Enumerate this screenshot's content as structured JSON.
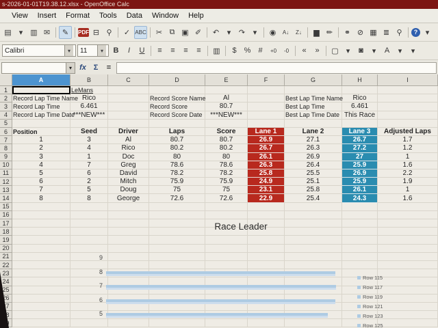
{
  "window": {
    "title": "s-2026-01-01T19.38.12.xlsx - OpenOffice Calc"
  },
  "menu_bar": {
    "items": [
      "View",
      "Insert",
      "Format",
      "Tools",
      "Data",
      "Window",
      "Help"
    ]
  },
  "standard_toolbar": {
    "find_label": "Find",
    "icons": [
      {
        "name": "new-document-icon",
        "glyph": "▤"
      },
      {
        "name": "new-dropdown-icon",
        "glyph": "▾"
      },
      {
        "name": "save-icon",
        "glyph": "▥"
      },
      {
        "name": "email-document-icon",
        "glyph": "✉"
      },
      {
        "name": "separator-line",
        "glyph": ""
      },
      {
        "name": "edit-mode-icon",
        "glyph": "✎",
        "hl": true
      },
      {
        "name": "separator-line",
        "glyph": ""
      },
      {
        "name": "pdf-export-icon",
        "glyph": "PDF",
        "red": true
      },
      {
        "name": "print-icon",
        "glyph": "⊟"
      },
      {
        "name": "page-preview-icon",
        "glyph": "⚲"
      },
      {
        "name": "separator-line",
        "glyph": ""
      },
      {
        "name": "spellcheck-icon",
        "glyph": "✓"
      },
      {
        "name": "autospellcheck-icon",
        "glyph": "ABC",
        "hl": true
      },
      {
        "name": "separator-line",
        "glyph": ""
      },
      {
        "name": "cut-icon",
        "glyph": "✂"
      },
      {
        "name": "copy-icon",
        "glyph": "⧉"
      },
      {
        "name": "paste-icon",
        "glyph": "▣"
      },
      {
        "name": "format-paintbrush-icon",
        "glyph": "✐"
      },
      {
        "name": "separator-line",
        "glyph": ""
      },
      {
        "name": "undo-icon",
        "glyph": "↶"
      },
      {
        "name": "undo-dropdown-icon",
        "glyph": "▾"
      },
      {
        "name": "redo-icon",
        "glyph": "↷"
      },
      {
        "name": "redo-dropdown-icon",
        "glyph": "▾"
      },
      {
        "name": "separator-line",
        "glyph": ""
      },
      {
        "name": "navigator-icon",
        "glyph": "◉"
      },
      {
        "name": "sort-ascending-icon",
        "glyph": "A↓"
      },
      {
        "name": "sort-descending-icon",
        "glyph": "Z↓"
      },
      {
        "name": "separator-line",
        "glyph": ""
      },
      {
        "name": "insert-chart-icon",
        "glyph": "▆"
      },
      {
        "name": "show-draw-functions-icon",
        "glyph": "✏"
      },
      {
        "name": "separator-line",
        "glyph": ""
      },
      {
        "name": "find-replace-icon",
        "glyph": "⚭"
      },
      {
        "name": "hyperlink-icon",
        "glyph": "⊘"
      },
      {
        "name": "gallery-icon",
        "glyph": "▦"
      },
      {
        "name": "data-sources-icon",
        "glyph": "≣"
      },
      {
        "name": "zoom-icon",
        "glyph": "⚲"
      },
      {
        "name": "separator-line",
        "glyph": ""
      },
      {
        "name": "help-icon",
        "glyph": "?",
        "round": true
      },
      {
        "name": "toolbar-options-dropdown-icon",
        "glyph": "▾"
      }
    ]
  },
  "formatting_toolbar": {
    "font_name": "Calibri",
    "font_size": "11",
    "icons": [
      {
        "name": "bold-button",
        "glyph": "B",
        "cls": "fb"
      },
      {
        "name": "italic-button",
        "glyph": "I",
        "cls": "fi"
      },
      {
        "name": "underline-button",
        "glyph": "U",
        "cls": "fu"
      },
      {
        "name": "separator-line",
        "glyph": ""
      },
      {
        "name": "align-left-icon",
        "glyph": "≡"
      },
      {
        "name": "align-center-icon",
        "glyph": "≡"
      },
      {
        "name": "align-right-icon",
        "glyph": "≡"
      },
      {
        "name": "align-justify-icon",
        "glyph": "≡"
      },
      {
        "name": "separator-line",
        "glyph": ""
      },
      {
        "name": "merge-cells-icon",
        "glyph": "▥"
      },
      {
        "name": "separator-line",
        "glyph": ""
      },
      {
        "name": "currency-format-icon",
        "glyph": "$"
      },
      {
        "name": "percent-format-icon",
        "glyph": "%"
      },
      {
        "name": "standard-format-icon",
        "glyph": "#"
      },
      {
        "name": "add-decimal-icon",
        "glyph": "+0"
      },
      {
        "name": "delete-decimal-icon",
        "glyph": "-0"
      },
      {
        "name": "separator-line",
        "glyph": ""
      },
      {
        "name": "decrease-indent-icon",
        "glyph": "«"
      },
      {
        "name": "increase-indent-icon",
        "glyph": "»"
      },
      {
        "name": "separator-line",
        "glyph": ""
      },
      {
        "name": "borders-icon",
        "glyph": "▢"
      },
      {
        "name": "borders-dropdown-icon",
        "glyph": "▾"
      },
      {
        "name": "background-color-icon",
        "glyph": "◙"
      },
      {
        "name": "background-color-dropdown-icon",
        "glyph": "▾"
      },
      {
        "name": "font-color-icon",
        "glyph": "A"
      },
      {
        "name": "font-color-dropdown-icon",
        "glyph": "▾"
      },
      {
        "name": "toolbar-options-dropdown-icon",
        "glyph": "▾"
      }
    ]
  },
  "formula_bar": {
    "name_box_value": "",
    "function_wizard": "fx",
    "sum": "Σ",
    "equals": "=",
    "input_value": ""
  },
  "sheet": {
    "selected_cell": "A1",
    "selected_column": "A",
    "columns": [
      "A",
      "B",
      "C",
      "D",
      "E",
      "F",
      "G",
      "H",
      "I"
    ],
    "row_count": 29,
    "b1": "LeMans",
    "lap_record": {
      "labels": [
        "Record Lap Time Name",
        "Record Lap Time",
        "Record Lap Time Date"
      ],
      "values": [
        "Rico",
        "6.461",
        "***NEW***"
      ]
    },
    "score_record": {
      "labels": [
        "Record Score Name",
        "Record Score",
        "Record Score Date"
      ],
      "values": [
        "Al",
        "80.7",
        "***NEW***"
      ]
    },
    "best_lap": {
      "labels": [
        "Best Lap Time Name",
        "Best Lap Time",
        "Best Lap Time Date"
      ],
      "values": [
        "Rico",
        "6.461",
        "This Race"
      ]
    },
    "table": {
      "headers": [
        "Position",
        "Seed",
        "Driver",
        "Laps",
        "Score",
        "Lane 1",
        "Lane 2",
        "Lane 3",
        "Adjusted Laps"
      ],
      "rows": [
        [
          "1",
          "3",
          "Al",
          "80.7",
          "80.7",
          "26.9",
          "27.1",
          "26.7",
          "1.7"
        ],
        [
          "2",
          "4",
          "Rico",
          "80.2",
          "80.2",
          "26.7",
          "26.3",
          "27.2",
          "1.2"
        ],
        [
          "3",
          "1",
          "Doc",
          "80",
          "80",
          "26.1",
          "26.9",
          "27",
          "1"
        ],
        [
          "4",
          "7",
          "Greg",
          "78.6",
          "78.6",
          "26.3",
          "26.4",
          "25.9",
          "1.6"
        ],
        [
          "5",
          "6",
          "David",
          "78.2",
          "78.2",
          "25.8",
          "25.5",
          "26.9",
          "2.2"
        ],
        [
          "6",
          "2",
          "Mitch",
          "75.9",
          "75.9",
          "24.9",
          "25.1",
          "25.9",
          "1.9"
        ],
        [
          "7",
          "5",
          "Doug",
          "75",
          "75",
          "23.1",
          "25.8",
          "26.1",
          "1"
        ],
        [
          "8",
          "8",
          "George",
          "72.6",
          "72.6",
          "22.9",
          "25.4",
          "24.3",
          "1.6"
        ]
      ]
    }
  },
  "chart_data": {
    "type": "bar",
    "orientation": "horizontal",
    "title": "Race Leader",
    "categories": [
      "9",
      "8",
      "7",
      "6",
      "5"
    ],
    "values": [
      0,
      0.97,
      0.975,
      0.97,
      0.94
    ],
    "value_scale": "fraction of visible plot width; numeric value axis is not visible in the screenshot",
    "legend": [
      "Row 115",
      "Row 117",
      "Row 119",
      "Row 121",
      "Row 123",
      "Row 125"
    ],
    "legend_position": "right",
    "bar_color": "#aecbe3",
    "note": "embedded chart, cut off at the bottom edge of the screen"
  },
  "colors": {
    "titlebar": "#7c1512",
    "lane1_header": "#b8291e",
    "lane3_header": "#2a8cb0",
    "selected_column": "#4d94d0",
    "chart_bar": "#aecbe3"
  }
}
